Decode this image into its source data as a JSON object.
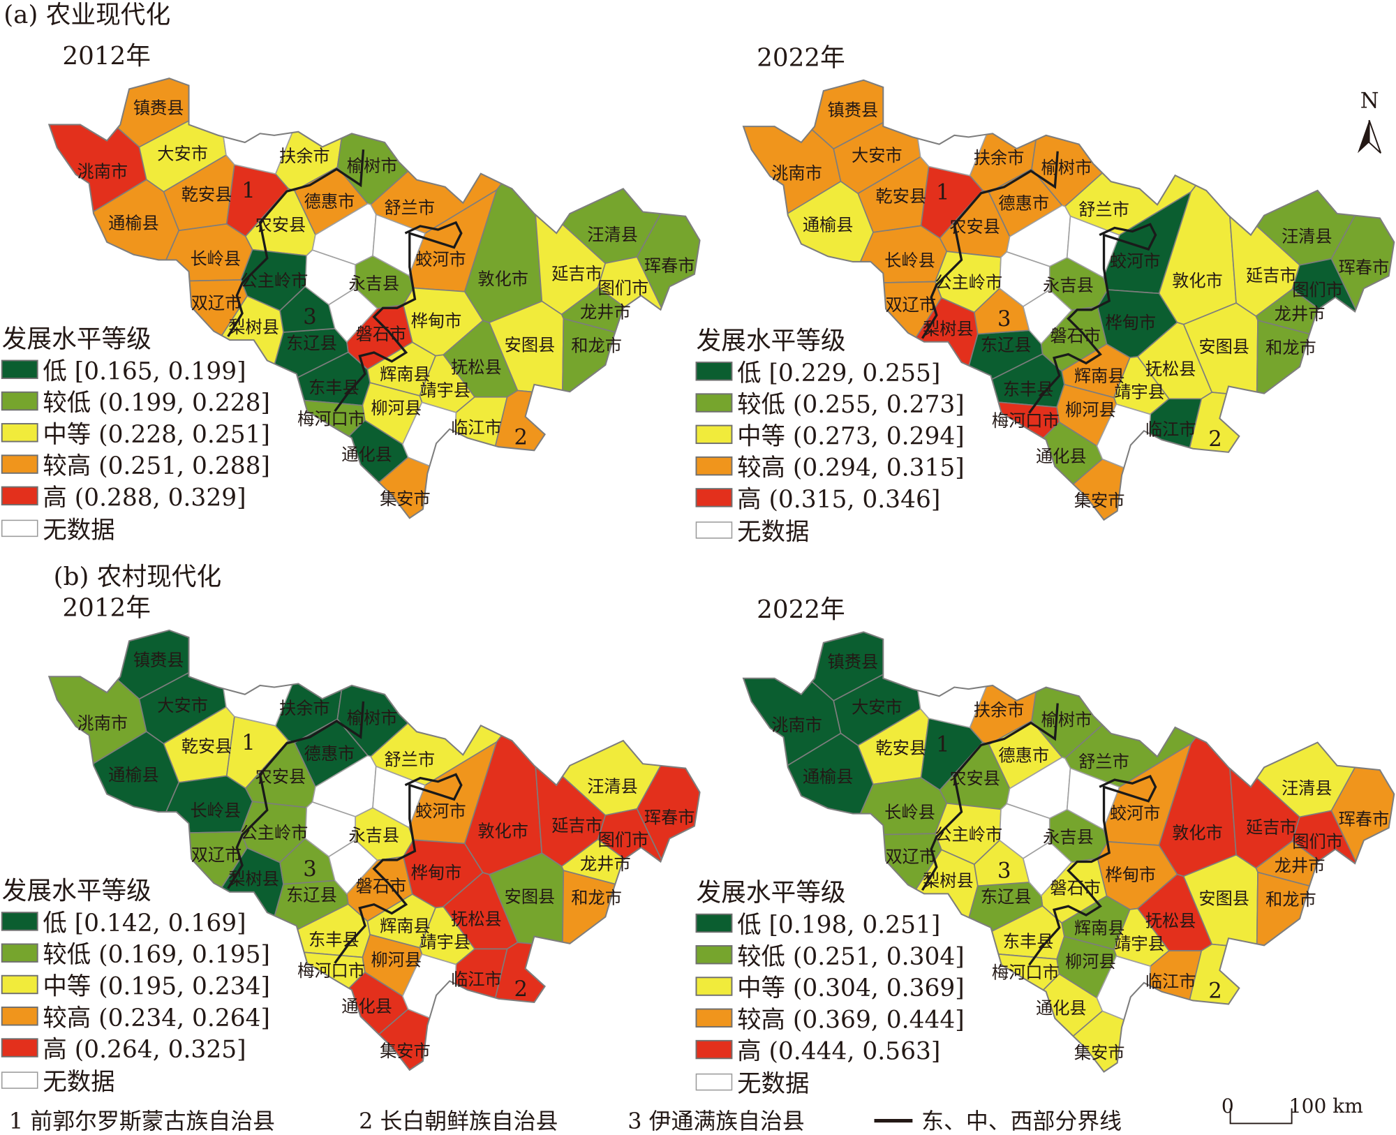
{
  "sections": {
    "a": "(a) 农业现代化",
    "b": "(b) 农村现代化"
  },
  "level_colors": [
    "#0b5e30",
    "#76a52d",
    "#f1eb3b",
    "#f0951c",
    "#e3301c"
  ],
  "no_data_color": "#ffffff",
  "legend_title": "发展水平等级",
  "no_data_label": "无数据",
  "counties": [
    "镇赉县",
    "洮南市",
    "大安市",
    "乾安县",
    "1",
    "扶余市",
    "榆树市",
    "德惠市",
    "通榆县",
    "农安县",
    "舒兰市",
    "长岭县",
    "蛟河市",
    "汪清县",
    "珲春市",
    "敦化市",
    "延吉市",
    "图们市",
    "公主岭市",
    "永吉县",
    "双辽市",
    "龙井市",
    "梨树县",
    "桦甸市",
    "磐石市",
    "东辽县",
    "3",
    "安图县",
    "和龙市",
    "辉南县",
    "抚松县",
    "东丰县",
    "靖宇县",
    "柳河县",
    "梅河口市",
    "临江市",
    "2",
    "通化县",
    "集安市"
  ],
  "panels": [
    {
      "section": "a",
      "year": "2012年",
      "legend": [
        "低 [0.165, 0.199]",
        "较低 (0.199, 0.228]",
        "中等 (0.228, 0.251]",
        "较高 (0.251, 0.288]",
        "高 (0.288, 0.329]"
      ],
      "classes": [
        3,
        4,
        2,
        3,
        4,
        2,
        1,
        3,
        3,
        2,
        3,
        3,
        3,
        1,
        1,
        1,
        2,
        2,
        0,
        1,
        3,
        1,
        2,
        2,
        4,
        0,
        0,
        2,
        1,
        2,
        1,
        0,
        2,
        2,
        1,
        2,
        3,
        0,
        3
      ]
    },
    {
      "section": "a",
      "year": "2022年",
      "legend": [
        "低 [0.229, 0.255]",
        "较低 (0.255, 0.273]",
        "中等 (0.273, 0.294]",
        "较高 (0.294, 0.315]",
        "高 (0.315, 0.346]"
      ],
      "classes": [
        3,
        3,
        3,
        3,
        4,
        3,
        3,
        3,
        2,
        3,
        2,
        3,
        0,
        1,
        1,
        2,
        2,
        0,
        2,
        1,
        3,
        1,
        4,
        0,
        1,
        0,
        3,
        2,
        1,
        3,
        2,
        0,
        2,
        3,
        4,
        0,
        2,
        1,
        3
      ]
    },
    {
      "section": "b",
      "year": "2012年",
      "legend": [
        "低 [0.142, 0.169]",
        "较低 (0.169, 0.195]",
        "中等 (0.195, 0.234]",
        "较高 (0.234, 0.264]",
        "高 (0.264, 0.325]"
      ],
      "classes": [
        0,
        1,
        0,
        2,
        2,
        0,
        0,
        0,
        0,
        1,
        2,
        0,
        3,
        2,
        4,
        4,
        4,
        4,
        1,
        2,
        1,
        2,
        0,
        4,
        3,
        1,
        1,
        1,
        3,
        2,
        4,
        2,
        2,
        3,
        2,
        4,
        4,
        4,
        4
      ]
    },
    {
      "section": "b",
      "year": "2022年",
      "legend": [
        "低 [0.198, 0.251]",
        "较低 (0.251, 0.304]",
        "中等 (0.304, 0.369]",
        "较高 (0.369, 0.444]",
        "高 (0.444, 0.563]"
      ],
      "classes": [
        0,
        0,
        0,
        2,
        0,
        3,
        1,
        2,
        0,
        1,
        1,
        1,
        3,
        2,
        3,
        4,
        4,
        4,
        2,
        1,
        1,
        3,
        2,
        3,
        2,
        1,
        2,
        2,
        3,
        1,
        4,
        2,
        2,
        1,
        2,
        3,
        2,
        2,
        2
      ]
    }
  ],
  "footnote": {
    "items": [
      "1 前郭尔罗斯蒙古族自治县",
      "2 长白朝鲜族自治县",
      "3 伊通满族自治县"
    ],
    "divider_label": "东、中、西部分界线"
  },
  "north_label": "N",
  "scale": {
    "start": "0",
    "end": "100 km"
  }
}
